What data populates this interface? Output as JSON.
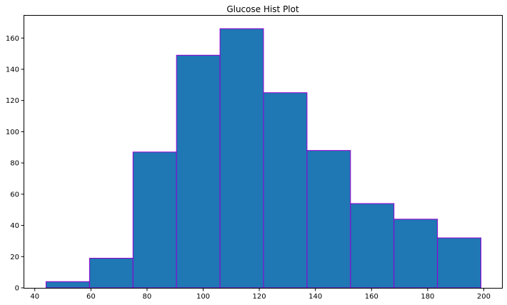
{
  "chart_data": {
    "type": "bar",
    "title": "Glucose Hist Plot",
    "xlabel": "",
    "ylabel": "",
    "bin_edges": [
      44,
      59.5,
      75,
      90.5,
      106,
      121.5,
      137,
      152.5,
      168,
      183.5,
      199
    ],
    "values": [
      4,
      19,
      87,
      149,
      166,
      125,
      88,
      54,
      44,
      32
    ],
    "xlim": [
      36.25,
      206.75
    ],
    "ylim": [
      0,
      174.3
    ],
    "x_ticks": [
      40,
      60,
      80,
      100,
      120,
      140,
      160,
      180,
      200
    ],
    "y_ticks": [
      0,
      20,
      40,
      60,
      80,
      100,
      120,
      140,
      160
    ],
    "grid": false,
    "colors": {
      "bar_fill": "#1f77b4",
      "bar_edge": "#9400d3",
      "axis": "#000000"
    }
  }
}
